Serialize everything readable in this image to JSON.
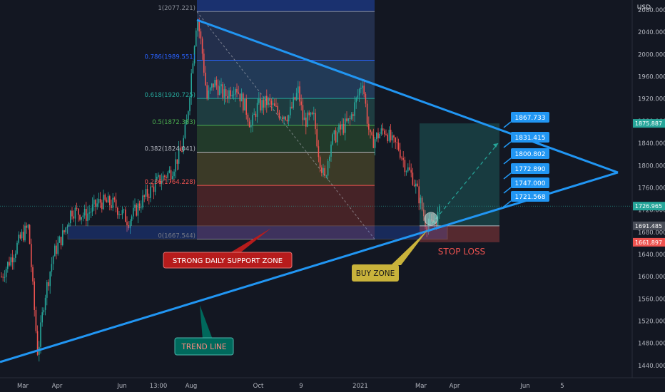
{
  "chart_data": {
    "type": "candlestick",
    "title": "",
    "currency": "USD",
    "last_price": "1726.965",
    "x_ticks": [
      "Mar",
      "Apr",
      "Jun",
      "13:00",
      "Aug",
      "Oct",
      "9",
      "2021",
      "Mar",
      "Apr",
      "Jun",
      "5"
    ],
    "y_ticks": [
      "2080.000",
      "2040.000",
      "2000.000",
      "1960.000",
      "1920.000",
      "1880.000",
      "1840.000",
      "1800.000",
      "1760.000",
      "1720.000",
      "1680.000",
      "1640.000",
      "1600.000",
      "1560.000",
      "1520.000",
      "1480.000",
      "1440.000"
    ],
    "ylim": [
      1418,
      2098
    ],
    "price_tags": [
      {
        "label": "1875.887",
        "price": 1875.887,
        "color": "#26a69a"
      },
      {
        "label": "1726.965",
        "price": 1726.965,
        "color": "#26a69a"
      },
      {
        "label": "1691.485",
        "price": 1691.485,
        "color": "#4a4e59"
      },
      {
        "label": "1661.897",
        "price": 1661.897,
        "color": "#ef5350"
      }
    ],
    "fibonacci": [
      {
        "label": "1(2077.221)",
        "price": 2077.221,
        "color": "#8a8f99"
      },
      {
        "label": "0.786(1989.551)",
        "price": 1989.551,
        "color": "#2962ff"
      },
      {
        "label": "0.618(1920.725)",
        "price": 1920.725,
        "color": "#26a69a"
      },
      {
        "label": "0.5(1872.383)",
        "price": 1872.383,
        "color": "#4caf50"
      },
      {
        "label": "0.382(1824.041)",
        "price": 1824.041,
        "color": "#b2b5be"
      },
      {
        "label": "0.236(1764.228)",
        "price": 1764.228,
        "color": "#ef5350"
      },
      {
        "label": "0(1667.544)",
        "price": 1667.544,
        "color": "#787b86"
      }
    ],
    "targets": [
      "1867.733",
      "1831.415",
      "1800.802",
      "1772.890",
      "1747.000",
      "1721.568"
    ],
    "annotations": {
      "support_zone": "STRONG DAILY SUPPORT ZONE",
      "buy_zone": "BUY ZONE",
      "stop_loss": "STOP LOSS",
      "trend_line": "TREND LINE"
    }
  },
  "colors": {
    "up": "#26a69a",
    "down": "#ef5350",
    "trend": "#2196f3",
    "support_label_bg": "#b71c1c",
    "buy_label_bg": "#c9b33b",
    "trend_label_bg": "#00695c",
    "target_bg": "#2196f3"
  }
}
